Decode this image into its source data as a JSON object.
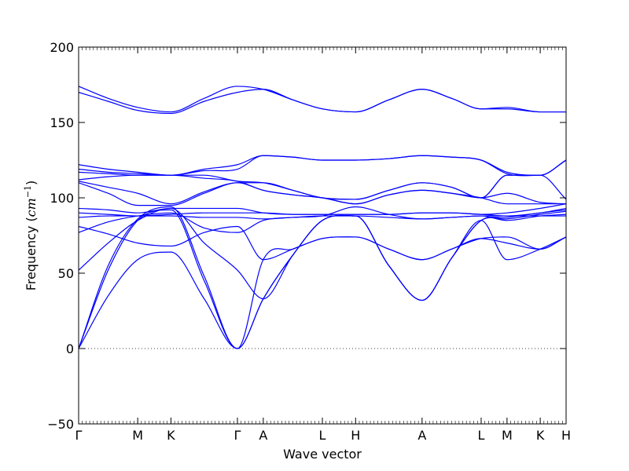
{
  "chart_data": {
    "type": "line",
    "title": "",
    "xlabel": "Wave vector",
    "ylabel_text": "Frequency (",
    "ylabel_unit_base": "cm",
    "ylabel_unit_exp": "−1",
    "ylabel_close": ")",
    "ylim": [
      -50,
      200
    ],
    "yticks": [
      -50,
      0,
      50,
      100,
      150,
      200
    ],
    "xlim": [
      0,
      13.2
    ],
    "xticks": [
      {
        "x": 0,
        "label": "Γ"
      },
      {
        "x": 1.6,
        "label": "M"
      },
      {
        "x": 2.5,
        "label": "K"
      },
      {
        "x": 4.3,
        "label": "Γ"
      },
      {
        "x": 5.0,
        "label": "A"
      },
      {
        "x": 6.6,
        "label": "L"
      },
      {
        "x": 7.5,
        "label": "H"
      },
      {
        "x": 9.3,
        "label": "A"
      },
      {
        "x": 10.9,
        "label": "L"
      },
      {
        "x": 11.6,
        "label": "M"
      },
      {
        "x": 12.5,
        "label": "K"
      },
      {
        "x": 13.2,
        "label": "H"
      }
    ],
    "zero_line": {
      "y": 0,
      "style": "dotted"
    },
    "line_color": "#0000ff",
    "grid": false,
    "series": [
      {
        "x": [
          0,
          0.8,
          1.6,
          2.5,
          3.4,
          4.3,
          5.0,
          5.8,
          6.6,
          7.5,
          8.4,
          9.3,
          10.1,
          10.9,
          11.6,
          12.5,
          13.2
        ],
        "y": [
          0,
          55,
          86,
          94,
          48,
          0,
          33,
          62,
          85,
          88,
          55,
          32,
          60,
          85,
          87,
          90,
          92
        ]
      },
      {
        "x": [
          0,
          0.8,
          1.6,
          2.5,
          3.4,
          4.3,
          5.0,
          5.8,
          6.6,
          7.5,
          8.4,
          9.3,
          10.1,
          10.9,
          11.6,
          12.5,
          13.2
        ],
        "y": [
          0,
          52,
          85,
          92,
          45,
          0,
          33,
          62,
          85,
          88,
          55,
          32,
          60,
          85,
          86,
          89,
          91
        ]
      },
      {
        "x": [
          0,
          0.8,
          1.6,
          2.5,
          3.4,
          4.3,
          5.0,
          5.8,
          6.6,
          7.5,
          8.4,
          9.3,
          10.1,
          10.9,
          11.6,
          12.5,
          13.2
        ],
        "y": [
          0,
          35,
          59,
          64,
          33,
          0,
          59,
          66,
          73,
          74,
          66,
          59,
          66,
          73,
          70,
          66,
          74
        ]
      },
      {
        "x": [
          0,
          0.8,
          1.6,
          2.5,
          3.4,
          4.3,
          5.0,
          5.8,
          6.6,
          7.5,
          8.4,
          9.3,
          10.1,
          10.9,
          11.6,
          12.5,
          13.2
        ],
        "y": [
          52,
          70,
          85,
          93,
          70,
          52,
          33,
          62,
          85,
          88,
          55,
          32,
          60,
          85,
          59,
          66,
          74
        ]
      },
      {
        "x": [
          0,
          0.8,
          1.6,
          2.5,
          3.4,
          4.3,
          5.0,
          5.8,
          6.6,
          7.5,
          8.4,
          9.3,
          10.1,
          10.9,
          11.6,
          12.5,
          13.2
        ],
        "y": [
          81,
          76,
          70,
          68,
          77,
          81,
          59,
          66,
          73,
          74,
          66,
          59,
          66,
          73,
          74,
          66,
          74
        ]
      },
      {
        "x": [
          0,
          0.8,
          1.6,
          2.5,
          3.4,
          4.3,
          5.0,
          5.8,
          6.6,
          7.5,
          8.4,
          9.3,
          10.1,
          10.9,
          11.6,
          12.5,
          13.2
        ],
        "y": [
          77,
          84,
          88,
          90,
          80,
          77,
          85,
          87,
          88,
          94,
          89,
          86,
          87,
          88,
          85,
          88,
          89
        ]
      },
      {
        "x": [
          0,
          0.8,
          1.6,
          2.5,
          3.4,
          4.3,
          5.0,
          5.8,
          6.6,
          7.5,
          8.4,
          9.3,
          10.1,
          10.9,
          11.6,
          12.5,
          13.2
        ],
        "y": [
          87,
          88,
          88,
          88,
          87,
          87,
          86,
          87,
          88,
          88,
          87,
          86,
          87,
          88,
          88,
          88,
          88
        ]
      },
      {
        "x": [
          0,
          0.8,
          1.6,
          2.5,
          3.4,
          4.3,
          5.0,
          5.8,
          6.6,
          7.5,
          8.4,
          9.3,
          10.1,
          10.9,
          11.6,
          12.5,
          13.2
        ],
        "y": [
          90,
          89,
          88,
          89,
          90,
          90,
          90,
          89,
          89,
          89,
          89,
          90,
          90,
          89,
          88,
          90,
          93
        ]
      },
      {
        "x": [
          0,
          0.8,
          1.6,
          2.5,
          3.4,
          4.3,
          5.0,
          5.8,
          6.6,
          7.5,
          8.4,
          9.3,
          10.1,
          10.9,
          11.6,
          12.5,
          13.2
        ],
        "y": [
          93,
          92,
          90,
          93,
          93,
          93,
          90,
          89,
          89,
          89,
          89,
          90,
          90,
          89,
          90,
          93,
          96
        ]
      },
      {
        "x": [
          0,
          0.8,
          1.6,
          2.5,
          3.4,
          4.3,
          5.0,
          5.8,
          6.6,
          7.5,
          8.4,
          9.3,
          10.1,
          10.9,
          11.6,
          12.5,
          13.2
        ],
        "y": [
          110,
          103,
          95,
          95,
          103,
          110,
          105,
          102,
          100,
          96,
          102,
          105,
          103,
          100,
          96,
          96,
          96
        ]
      },
      {
        "x": [
          0,
          0.8,
          1.6,
          2.5,
          3.4,
          4.3,
          5.0,
          5.8,
          6.6,
          7.5,
          8.4,
          9.3,
          10.1,
          10.9,
          11.6,
          12.5,
          13.2
        ],
        "y": [
          111,
          107,
          103,
          96,
          104,
          110,
          110,
          105,
          100,
          99,
          105,
          110,
          107,
          100,
          103,
          97,
          96
        ]
      },
      {
        "x": [
          0,
          0.8,
          1.6,
          2.5,
          3.4,
          4.3,
          5.0,
          5.8,
          6.6,
          7.5,
          8.4,
          9.3,
          10.1,
          10.9,
          11.6,
          12.5,
          13.2
        ],
        "y": [
          112,
          114,
          115,
          115,
          115,
          111,
          110,
          105,
          100,
          99,
          105,
          110,
          107,
          100,
          115,
          115,
          99
        ]
      },
      {
        "x": [
          0,
          0.8,
          1.6,
          2.5,
          3.4,
          4.3,
          5.0,
          5.8,
          6.6,
          7.5,
          8.4,
          9.3,
          10.1,
          10.9,
          11.6,
          12.5,
          13.2
        ],
        "y": [
          117,
          116,
          115,
          115,
          113,
          111,
          105,
          102,
          100,
          96,
          102,
          105,
          103,
          100,
          115,
          115,
          125
        ]
      },
      {
        "x": [
          0,
          0.8,
          1.6,
          2.5,
          3.4,
          4.3,
          5.0,
          5.8,
          6.6,
          7.5,
          8.4,
          9.3,
          10.1,
          10.9,
          11.6,
          12.5,
          13.2
        ],
        "y": [
          119,
          117,
          116,
          115,
          118,
          119,
          128,
          127,
          125,
          125,
          126,
          128,
          127,
          125,
          116,
          115,
          125
        ]
      },
      {
        "x": [
          0,
          0.8,
          1.6,
          2.5,
          3.4,
          4.3,
          5.0,
          5.8,
          6.6,
          7.5,
          8.4,
          9.3,
          10.1,
          10.9,
          11.6,
          12.5,
          13.2
        ],
        "y": [
          122,
          119,
          117,
          115,
          119,
          122,
          128,
          127,
          125,
          125,
          126,
          128,
          127,
          125,
          117,
          115,
          125
        ]
      },
      {
        "x": [
          0,
          0.8,
          1.6,
          2.5,
          3.4,
          4.3,
          5.0,
          5.8,
          6.6,
          7.5,
          8.4,
          9.3,
          10.1,
          10.9,
          11.6,
          12.5,
          13.2
        ],
        "y": [
          170,
          164,
          158,
          156,
          164,
          170,
          172,
          165,
          159,
          157,
          165,
          172,
          166,
          159,
          159,
          157,
          157
        ]
      },
      {
        "x": [
          0,
          0.8,
          1.6,
          2.5,
          3.4,
          4.3,
          5.0,
          5.8,
          6.6,
          7.5,
          8.4,
          9.3,
          10.1,
          10.9,
          11.6,
          12.5,
          13.2
        ],
        "y": [
          174,
          166,
          160,
          157,
          166,
          174,
          172,
          165,
          159,
          157,
          165,
          172,
          166,
          159,
          160,
          157,
          157
        ]
      }
    ]
  }
}
